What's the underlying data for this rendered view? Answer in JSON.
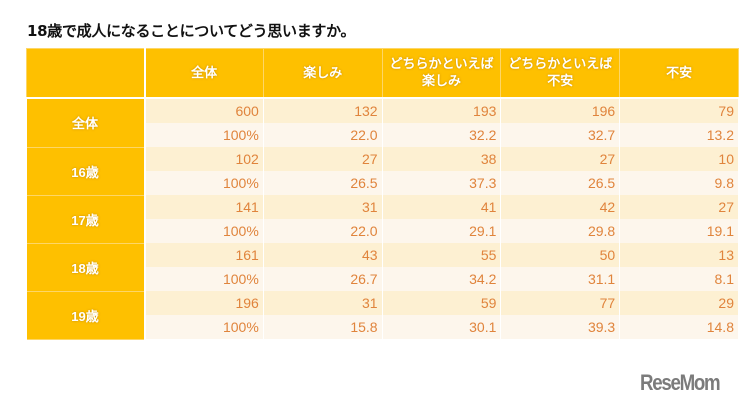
{
  "title": "18歳で成人になることについてどう思いますか。",
  "columns": [
    "",
    "全体",
    "楽しみ",
    "どちらかといえば\n楽しみ",
    "どちらかといえば\n不安",
    "不安"
  ],
  "groups": [
    {
      "label": "全体",
      "counts": [
        "600",
        "132",
        "193",
        "196",
        "79"
      ],
      "percents": [
        "100%",
        "22.0",
        "32.2",
        "32.7",
        "13.2"
      ]
    },
    {
      "label": "16歳",
      "counts": [
        "102",
        "27",
        "38",
        "27",
        "10"
      ],
      "percents": [
        "100%",
        "26.5",
        "37.3",
        "26.5",
        "9.8"
      ]
    },
    {
      "label": "17歳",
      "counts": [
        "141",
        "31",
        "41",
        "42",
        "27"
      ],
      "percents": [
        "100%",
        "22.0",
        "29.1",
        "29.8",
        "19.1"
      ]
    },
    {
      "label": "18歳",
      "counts": [
        "161",
        "43",
        "55",
        "50",
        "13"
      ],
      "percents": [
        "100%",
        "26.7",
        "34.2",
        "31.1",
        "8.1"
      ]
    },
    {
      "label": "19歳",
      "counts": [
        "196",
        "31",
        "59",
        "77",
        "29"
      ],
      "percents": [
        "100%",
        "15.8",
        "30.1",
        "39.3",
        "14.8"
      ]
    }
  ],
  "colors": {
    "header": "#fec000",
    "row_odd": "#fdf0d2",
    "row_even": "#fdf6ec",
    "value_text": "#e0843c"
  },
  "logo": "ReseMom"
}
